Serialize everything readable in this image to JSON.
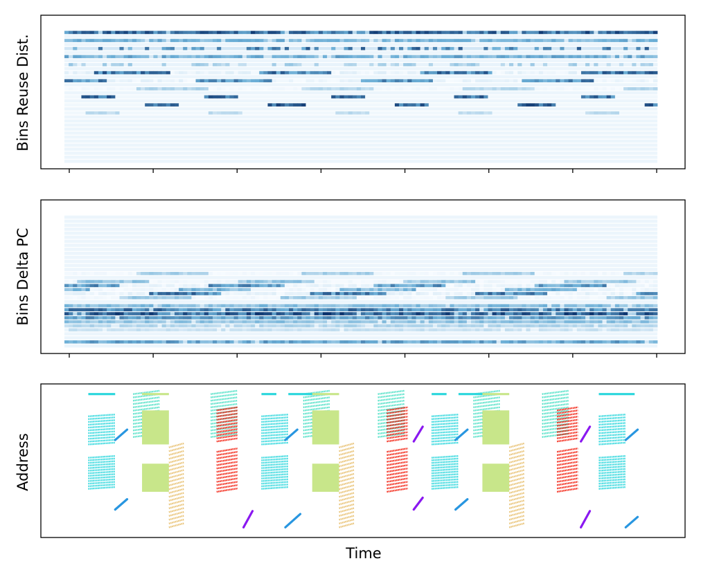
{
  "colors": {
    "heat_low": "#f7fbff",
    "heat_mid": "#6baed6",
    "heat_high": "#08306b",
    "scatter_cyan": "#2ad6dc",
    "scatter_turquoise": "#4fe0c6",
    "scatter_green": "#c8e68a",
    "scatter_orange": "#e8c070",
    "scatter_red": "#f21f0f",
    "scatter_blue": "#2896e0",
    "scatter_purple": "#8a18f0",
    "axis": "#000000"
  },
  "chart_data": [
    {
      "type": "heatmap",
      "id": "reuse",
      "ylabel": "Bins Reuse Dist.",
      "xlabel": "",
      "x_ticks": 8,
      "x_tick_labels": false,
      "y_tick_labels": false,
      "n_bins": 33,
      "time_range": [
        0,
        100
      ],
      "active_bins": [
        {
          "bin": 0,
          "level": 0.95,
          "pattern": "dense"
        },
        {
          "bin": 2,
          "level": 0.55,
          "pattern": "dense"
        },
        {
          "bin": 4,
          "level": 0.85,
          "pattern": "spots"
        },
        {
          "bin": 6,
          "level": 0.6,
          "pattern": "dense"
        },
        {
          "bin": 8,
          "level": 0.35,
          "pattern": "spots"
        },
        {
          "bin": 10,
          "level": 0.9,
          "pattern": "blocks"
        },
        {
          "bin": 12,
          "level": 0.8,
          "pattern": "blocks"
        },
        {
          "bin": 14,
          "level": 0.3,
          "pattern": "blocks"
        },
        {
          "bin": 16,
          "level": 0.9,
          "pattern": "short"
        },
        {
          "bin": 18,
          "level": 0.95,
          "pattern": "short"
        },
        {
          "bin": 20,
          "level": 0.25,
          "pattern": "short"
        }
      ]
    },
    {
      "type": "heatmap",
      "id": "deltapc",
      "ylabel": "Bins Delta PC",
      "xlabel": "",
      "x_ticks": 8,
      "x_tick_labels": false,
      "y_tick_labels": false,
      "n_bins": 33,
      "time_range": [
        0,
        100
      ],
      "active_bins": [
        {
          "bin": 14,
          "level": 0.35,
          "pattern": "blocks"
        },
        {
          "bin": 16,
          "level": 0.45,
          "pattern": "blocks"
        },
        {
          "bin": 17,
          "level": 0.75,
          "pattern": "blocks"
        },
        {
          "bin": 18,
          "level": 0.55,
          "pattern": "blocks"
        },
        {
          "bin": 19,
          "level": 0.85,
          "pattern": "blocks"
        },
        {
          "bin": 20,
          "level": 0.4,
          "pattern": "blocks"
        },
        {
          "bin": 22,
          "level": 0.5,
          "pattern": "dense"
        },
        {
          "bin": 23,
          "level": 0.85,
          "pattern": "dense"
        },
        {
          "bin": 24,
          "level": 1.0,
          "pattern": "dense"
        },
        {
          "bin": 25,
          "level": 0.7,
          "pattern": "dense"
        },
        {
          "bin": 26,
          "level": 0.45,
          "pattern": "dense"
        },
        {
          "bin": 27,
          "level": 0.3,
          "pattern": "dense"
        },
        {
          "bin": 28,
          "level": 0.2,
          "pattern": "dense"
        },
        {
          "bin": 31,
          "level": 0.65,
          "pattern": "dense"
        }
      ]
    },
    {
      "type": "scatter",
      "id": "address",
      "ylabel": "Address",
      "xlabel": "Time",
      "x_ticks": 0,
      "x_tick_labels": false,
      "y_tick_labels": false,
      "xlim": [
        0,
        100
      ],
      "ylim": [
        0,
        100
      ],
      "series": [
        {
          "name": "cyan-top-band",
          "color": "scatter_cyan",
          "kind": "band",
          "blocks": [
            {
              "x0": 4,
              "x1": 8.5,
              "y0": 61,
              "y1": 80,
              "rows": 11
            },
            {
              "x0": 33,
              "x1": 37.5,
              "y0": 61,
              "y1": 80,
              "rows": 11
            },
            {
              "x0": 61.5,
              "x1": 66,
              "y0": 61,
              "y1": 80,
              "rows": 11
            },
            {
              "x0": 89.5,
              "x1": 94,
              "y0": 61,
              "y1": 80,
              "rows": 11
            }
          ]
        },
        {
          "name": "cyan-mid-band",
          "color": "scatter_cyan",
          "kind": "band",
          "blocks": [
            {
              "x0": 4,
              "x1": 8.5,
              "y0": 31,
              "y1": 52,
              "rows": 13
            },
            {
              "x0": 33,
              "x1": 37.5,
              "y0": 31,
              "y1": 52,
              "rows": 13
            },
            {
              "x0": 61.5,
              "x1": 66,
              "y0": 31,
              "y1": 52,
              "rows": 13
            },
            {
              "x0": 89.5,
              "x1": 94,
              "y0": 31,
              "y1": 52,
              "rows": 13
            }
          ]
        },
        {
          "name": "cyan-diag",
          "color": "scatter_turquoise",
          "kind": "diag",
          "blocks": [
            {
              "x0": 11.5,
              "x1": 16,
              "y0": 66,
              "y1": 95,
              "rows": 14
            },
            {
              "x0": 24.5,
              "x1": 29,
              "y0": 66,
              "y1": 95,
              "rows": 14
            },
            {
              "x0": 40,
              "x1": 44.5,
              "y0": 66,
              "y1": 95,
              "rows": 14
            },
            {
              "x0": 52.5,
              "x1": 57,
              "y0": 66,
              "y1": 95,
              "rows": 14
            },
            {
              "x0": 68.5,
              "x1": 73,
              "y0": 66,
              "y1": 95,
              "rows": 14
            },
            {
              "x0": 80,
              "x1": 84.5,
              "y0": 66,
              "y1": 95,
              "rows": 14
            }
          ]
        },
        {
          "name": "cyan-top-line",
          "color": "scatter_cyan",
          "kind": "hline",
          "lines": [
            {
              "x0": 4,
              "x1": 8.5,
              "y": 95
            },
            {
              "x0": 33,
              "x1": 35.5,
              "y": 95
            },
            {
              "x0": 37.5,
              "x1": 42,
              "y": 95
            },
            {
              "x0": 61.5,
              "x1": 64,
              "y": 95
            },
            {
              "x0": 66,
              "x1": 70.5,
              "y": 95
            },
            {
              "x0": 89.5,
              "x1": 95.5,
              "y": 95
            }
          ]
        },
        {
          "name": "green-block",
          "color": "scatter_green",
          "kind": "fill",
          "blocks": [
            {
              "x0": 13,
              "x1": 17.5,
              "y0": 61,
              "y1": 84
            },
            {
              "x0": 13,
              "x1": 17.5,
              "y0": 29,
              "y1": 48
            },
            {
              "x0": 41.5,
              "x1": 46,
              "y0": 61,
              "y1": 84
            },
            {
              "x0": 41.5,
              "x1": 46,
              "y0": 29,
              "y1": 48
            },
            {
              "x0": 70,
              "x1": 74.5,
              "y0": 61,
              "y1": 84
            },
            {
              "x0": 70,
              "x1": 74.5,
              "y0": 29,
              "y1": 48
            }
          ]
        },
        {
          "name": "green-line",
          "color": "scatter_green",
          "kind": "hline",
          "lines": [
            {
              "x0": 13,
              "x1": 17.5,
              "y": 95
            },
            {
              "x0": 41.5,
              "x1": 46,
              "y": 95
            },
            {
              "x0": 70,
              "x1": 74.5,
              "y": 95
            }
          ]
        },
        {
          "name": "orange-band",
          "color": "scatter_orange",
          "kind": "diag",
          "blocks": [
            {
              "x0": 17.5,
              "x1": 20,
              "y0": 5,
              "y1": 59,
              "rows": 22
            },
            {
              "x0": 46,
              "x1": 48.5,
              "y0": 5,
              "y1": 59,
              "rows": 22
            },
            {
              "x0": 74.5,
              "x1": 77,
              "y0": 5,
              "y1": 59,
              "rows": 22
            }
          ]
        },
        {
          "name": "red-band",
          "color": "scatter_red",
          "kind": "diag",
          "blocks": [
            {
              "x0": 25.5,
              "x1": 29,
              "y0": 63,
              "y1": 84,
              "rows": 11
            },
            {
              "x0": 25.5,
              "x1": 29,
              "y0": 29,
              "y1": 56,
              "rows": 13
            },
            {
              "x0": 54,
              "x1": 57.5,
              "y0": 63,
              "y1": 84,
              "rows": 11
            },
            {
              "x0": 54,
              "x1": 57.5,
              "y0": 29,
              "y1": 56,
              "rows": 13
            },
            {
              "x0": 82.5,
              "x1": 86,
              "y0": 63,
              "y1": 84,
              "rows": 11
            },
            {
              "x0": 82.5,
              "x1": 86,
              "y0": 29,
              "y1": 56,
              "rows": 13
            }
          ]
        },
        {
          "name": "blue-diag",
          "color": "scatter_blue",
          "kind": "seg",
          "segs": [
            {
              "x0": 8.5,
              "y0": 64,
              "x1": 10.5,
              "y1": 71
            },
            {
              "x0": 8.5,
              "y0": 17,
              "x1": 10.5,
              "y1": 24
            },
            {
              "x0": 37,
              "y0": 64,
              "x1": 39,
              "y1": 71
            },
            {
              "x0": 37,
              "y0": 5,
              "x1": 39.5,
              "y1": 14
            },
            {
              "x0": 65.5,
              "y0": 64,
              "x1": 67.5,
              "y1": 71
            },
            {
              "x0": 65.5,
              "y0": 17,
              "x1": 67.5,
              "y1": 24
            },
            {
              "x0": 94,
              "y0": 64,
              "x1": 96,
              "y1": 71
            },
            {
              "x0": 94,
              "y0": 5,
              "x1": 96,
              "y1": 12
            }
          ]
        },
        {
          "name": "purple-diag",
          "color": "scatter_purple",
          "kind": "seg",
          "segs": [
            {
              "x0": 30,
              "y0": 5,
              "x1": 31.5,
              "y1": 16
            },
            {
              "x0": 58.5,
              "y0": 63,
              "x1": 60,
              "y1": 73
            },
            {
              "x0": 58.5,
              "y0": 17,
              "x1": 60,
              "y1": 25
            },
            {
              "x0": 86.5,
              "y0": 63,
              "x1": 88,
              "y1": 73
            },
            {
              "x0": 86.5,
              "y0": 5,
              "x1": 88,
              "y1": 16
            }
          ]
        }
      ]
    }
  ]
}
